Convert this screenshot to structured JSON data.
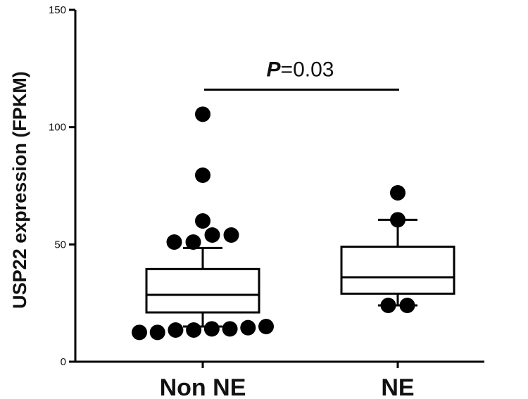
{
  "chart_data": {
    "type": "box",
    "title": "",
    "xlabel": "",
    "ylabel": "USP22 expression (FPKM)",
    "ylim": [
      0,
      150
    ],
    "yticks": [
      0,
      50,
      100,
      150
    ],
    "categories": [
      "Non NE",
      "NE"
    ],
    "groups": [
      {
        "name": "Non NE",
        "q1": 21,
        "median": 28.5,
        "q3": 39.5,
        "whisker_low": 15,
        "whisker_high": 48.5,
        "outliers": [
          13.5,
          15,
          13.5,
          14,
          14.5,
          12.5,
          14,
          12.5,
          51,
          51,
          54,
          54,
          60,
          79.5,
          105.5
        ]
      },
      {
        "name": "NE",
        "q1": 29,
        "median": 36,
        "q3": 49,
        "whisker_low": 24,
        "whisker_high": 60.5,
        "outliers": [
          24,
          24,
          60.5,
          72
        ]
      }
    ],
    "annotation": {
      "p_symbol": "P",
      "p_value": "=0.03",
      "y": 116
    }
  }
}
